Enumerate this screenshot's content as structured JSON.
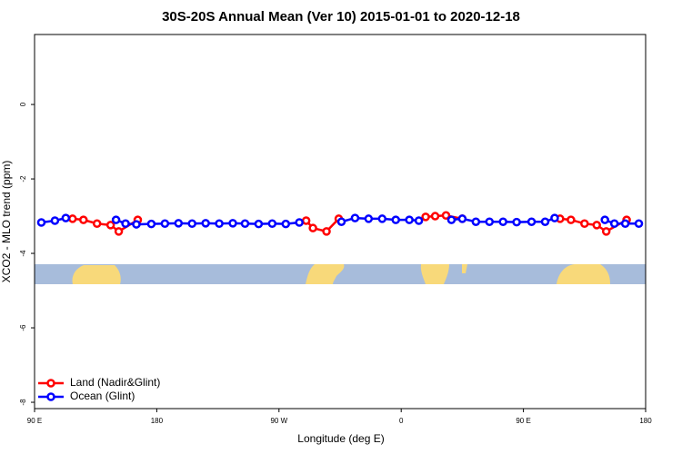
{
  "chart_data": {
    "type": "line",
    "title": "30S-20S Annual Mean (Ver 10)   2015-01-01 to 2020-12-18",
    "x_label": "Longitude (deg E)",
    "y_label": "XCO2 - MLO trend (ppm)",
    "xlim": [
      90,
      540
    ],
    "xticks": [
      {
        "value": 90,
        "label": "90 E"
      },
      {
        "value": 180,
        "label": "180"
      },
      {
        "value": 270,
        "label": "90 W"
      },
      {
        "value": 360,
        "label": "0"
      },
      {
        "value": 450,
        "label": "90 E"
      },
      {
        "value": 540,
        "label": "180"
      }
    ],
    "ylim": [
      -8.17,
      1.88
    ],
    "yticks": [
      0,
      -2,
      -4,
      -6,
      -8
    ],
    "legend": "bottom-left",
    "series": [
      {
        "name": "Land (Nadir&Glint)",
        "color": "#ff0000",
        "x": [
          118,
          126,
          136,
          146,
          152,
          166,
          null,
          290,
          295,
          305,
          314,
          null,
          378,
          385,
          393,
          405,
          null,
          477,
          485,
          495,
          504,
          511,
          526
        ],
        "values": [
          -3.07,
          -3.1,
          -3.2,
          -3.24,
          -3.41,
          -3.1,
          null,
          -3.12,
          -3.32,
          -3.41,
          -3.07,
          null,
          -3.02,
          -3.0,
          -2.98,
          -3.07,
          null,
          -3.07,
          -3.1,
          -3.2,
          -3.24,
          -3.41,
          -3.1
        ]
      },
      {
        "name": "Ocean (Glint)",
        "color": "#0000ff",
        "x": [
          95,
          105,
          113,
          null,
          150,
          157,
          165,
          176,
          186,
          196,
          206,
          216,
          226,
          236,
          245,
          255,
          265,
          275,
          285,
          null,
          316,
          326,
          336,
          346,
          356,
          366,
          373,
          null,
          397,
          405,
          415,
          425,
          435,
          445,
          456,
          466,
          473,
          null,
          510,
          517,
          525,
          535
        ],
        "values": [
          -3.17,
          -3.12,
          -3.05,
          null,
          -3.1,
          -3.2,
          -3.22,
          -3.21,
          -3.2,
          -3.19,
          -3.2,
          -3.19,
          -3.2,
          -3.19,
          -3.2,
          -3.21,
          -3.2,
          -3.21,
          -3.17,
          null,
          -3.15,
          -3.05,
          -3.07,
          -3.07,
          -3.1,
          -3.1,
          -3.12,
          null,
          -3.1,
          -3.07,
          -3.15,
          -3.15,
          -3.15,
          -3.16,
          -3.15,
          -3.15,
          -3.05,
          null,
          -3.1,
          -3.2,
          -3.2,
          -3.2
        ]
      }
    ]
  }
}
